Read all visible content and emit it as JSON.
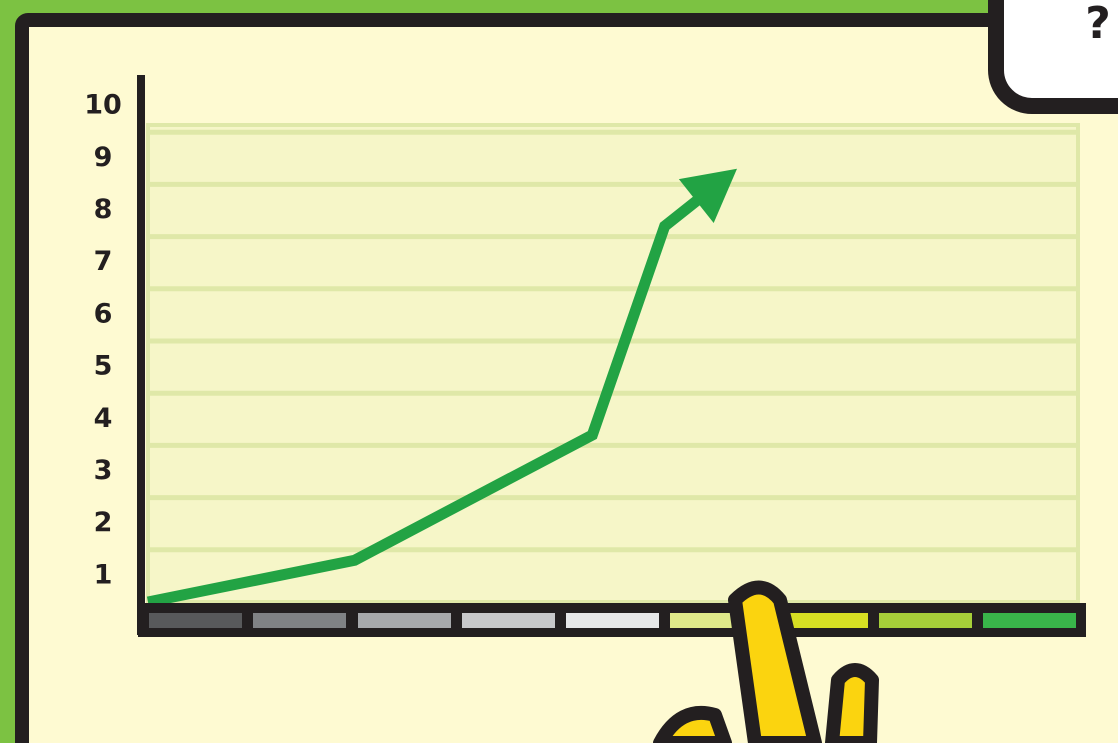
{
  "help_button": "?",
  "chart_data": {
    "type": "line",
    "x": [
      0,
      2,
      4.3,
      5,
      5.7
    ],
    "series": [
      {
        "color": "#22a344",
        "values": [
          0,
          0.8,
          3.2,
          7.2,
          8.3
        ]
      }
    ],
    "xlim": [
      0,
      9
    ],
    "ylim": [
      0,
      10
    ],
    "yticks": [
      1,
      2,
      3,
      4,
      5,
      6,
      7,
      8,
      9,
      10
    ],
    "grid": true
  }
}
